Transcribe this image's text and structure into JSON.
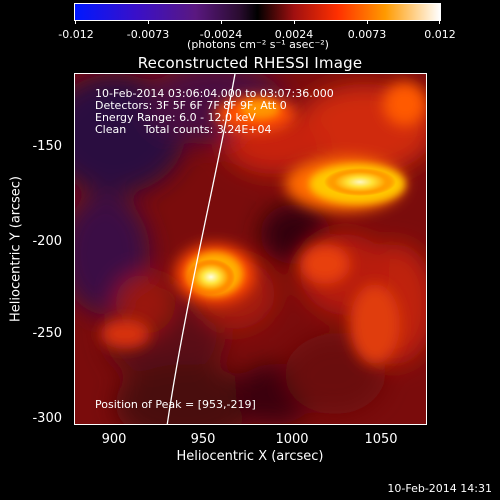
{
  "colorbar": {
    "tick_labels": [
      "-0.012",
      "-0.0073",
      "-0.0024",
      "0.0024",
      "0.0073",
      "0.012"
    ],
    "units": "(photons cm⁻² s⁻¹ asec⁻²)"
  },
  "title": "Reconstructed RHESSI Image",
  "info": {
    "time_range": "10-Feb-2014 03:06:04.000 to 03:07:36.000",
    "detectors": "Detectors: 3F 5F 6F 7F 8F 9F, Att 0",
    "energy_range": "Energy Range: 6.0 - 12.0 keV",
    "clean_counts": "Clean     Total counts: 3.24E+04",
    "peak_position": "Position of Peak = [953,-219]"
  },
  "axes": {
    "xlabel": "Heliocentric X (arcsec)",
    "ylabel": "Heliocentric Y (arcsec)",
    "x_ticks": [
      "900",
      "950",
      "1000",
      "1050"
    ],
    "y_ticks": [
      "-150",
      "-200",
      "-250",
      "-300"
    ]
  },
  "timestamp": "10-Feb-2014 14:31"
}
